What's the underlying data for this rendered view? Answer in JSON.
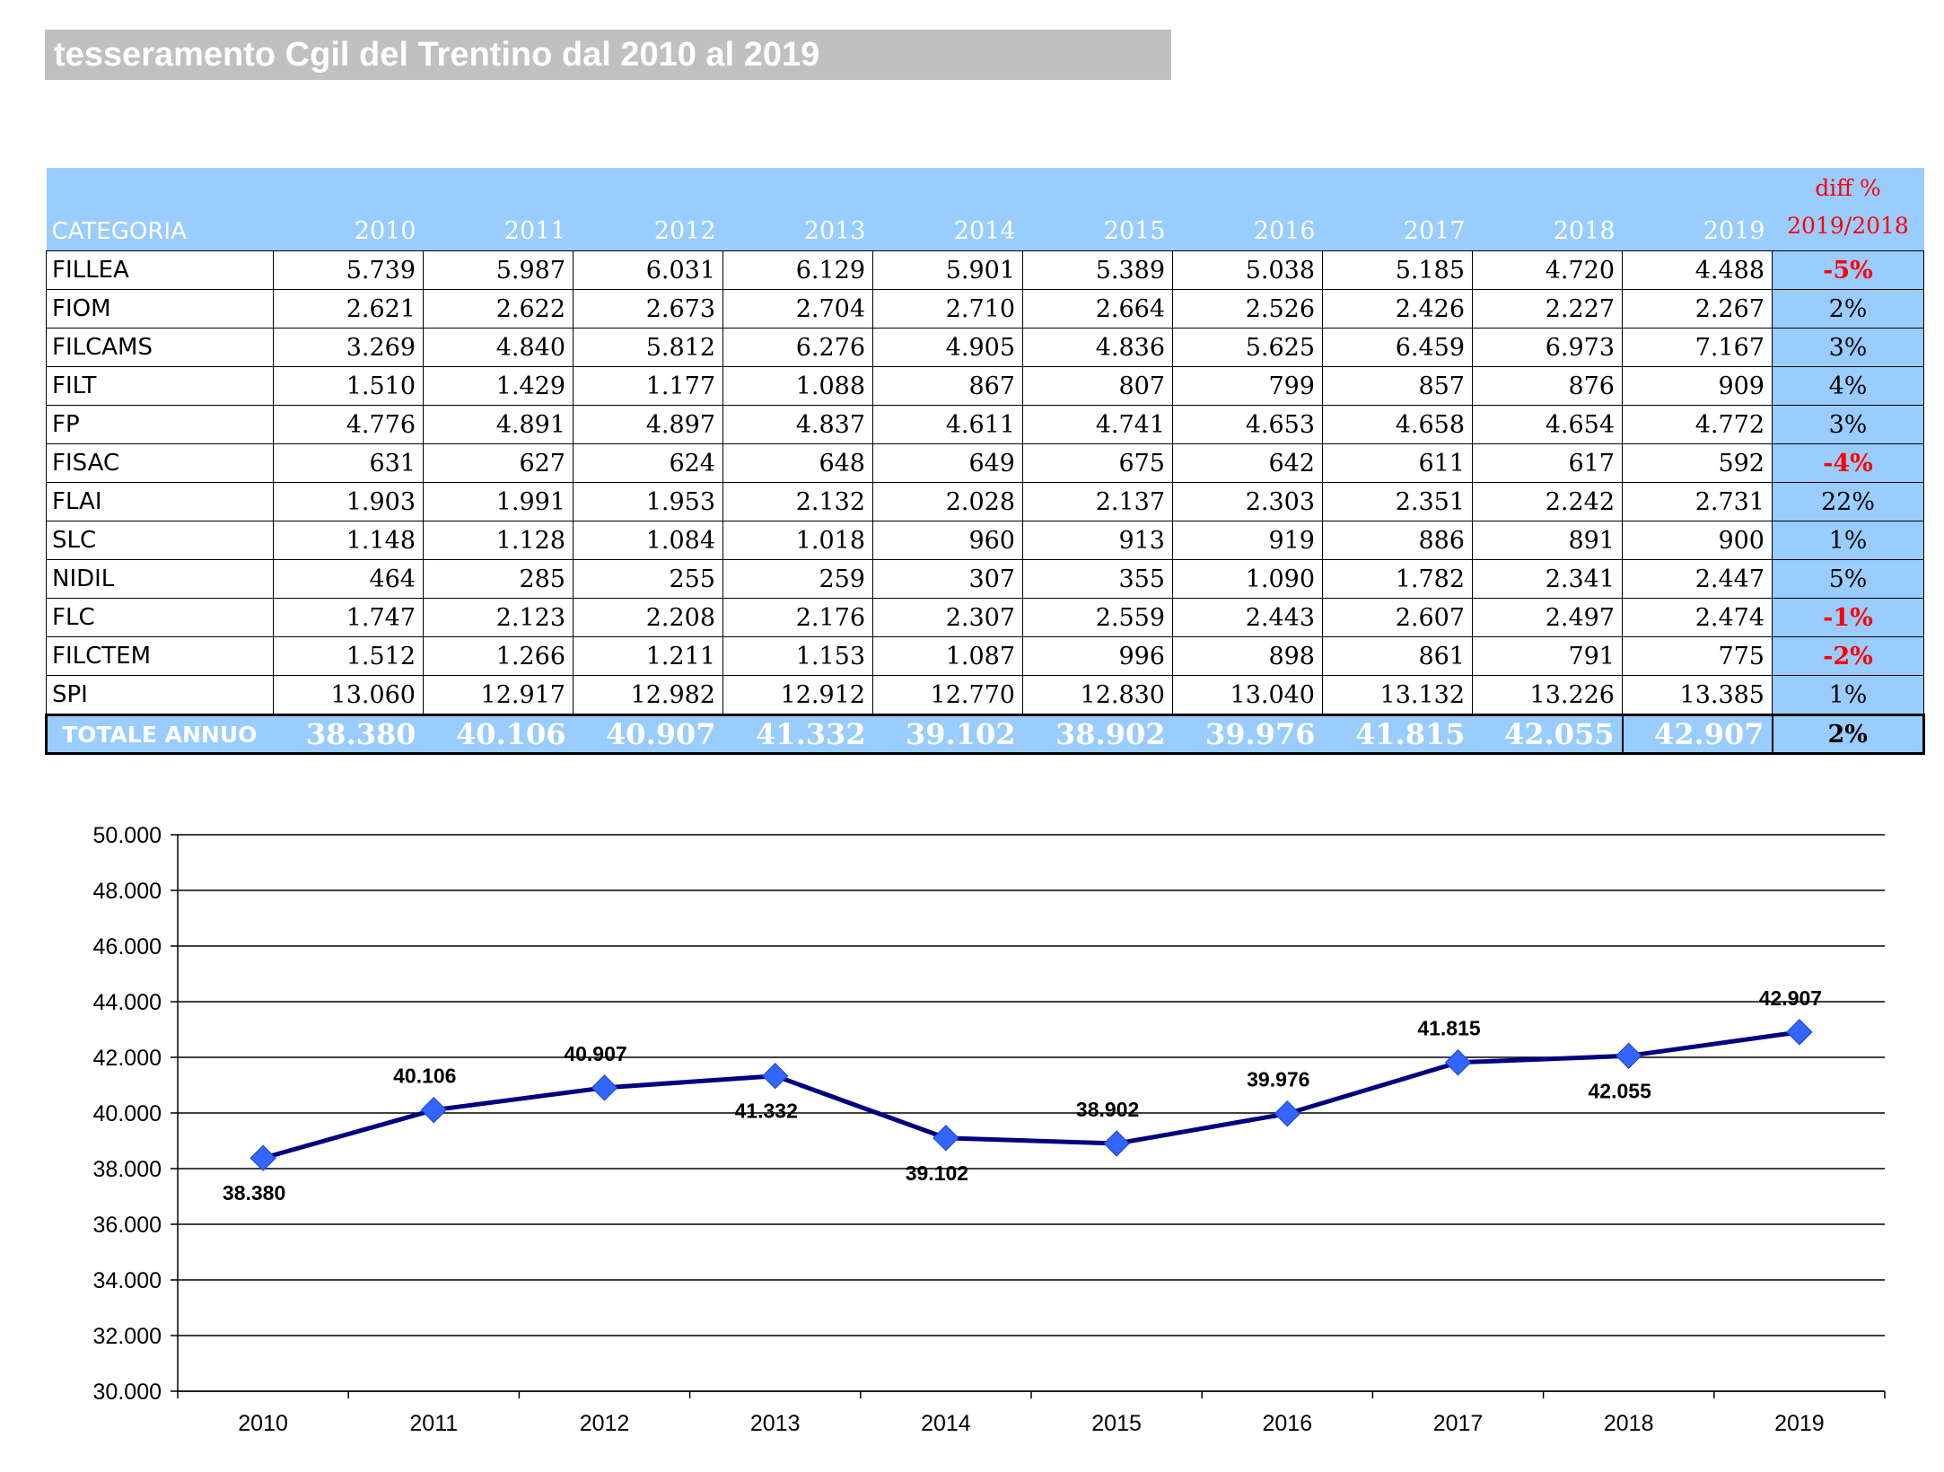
{
  "title": "tesseramento Cgil del Trentino dal 2010 al 2019",
  "table": {
    "category_header": "CATEGORIA",
    "years": [
      "2010",
      "2011",
      "2012",
      "2013",
      "2014",
      "2015",
      "2016",
      "2017",
      "2018",
      "2019"
    ],
    "diff_header_line1": "diff %",
    "diff_header_line2": "2019/2018",
    "rows": [
      {
        "name": "FILLEA",
        "values": [
          "5.739",
          "5.987",
          "6.031",
          "6.129",
          "5.901",
          "5.389",
          "5.038",
          "5.185",
          "4.720",
          "4.488"
        ],
        "diff": "-5%",
        "negative": true
      },
      {
        "name": "FIOM",
        "values": [
          "2.621",
          "2.622",
          "2.673",
          "2.704",
          "2.710",
          "2.664",
          "2.526",
          "2.426",
          "2.227",
          "2.267"
        ],
        "diff": "2%",
        "negative": false
      },
      {
        "name": "FILCAMS",
        "values": [
          "3.269",
          "4.840",
          "5.812",
          "6.276",
          "4.905",
          "4.836",
          "5.625",
          "6.459",
          "6.973",
          "7.167"
        ],
        "diff": "3%",
        "negative": false
      },
      {
        "name": "FILT",
        "values": [
          "1.510",
          "1.429",
          "1.177",
          "1.088",
          "867",
          "807",
          "799",
          "857",
          "876",
          "909"
        ],
        "diff": "4%",
        "negative": false
      },
      {
        "name": "FP",
        "values": [
          "4.776",
          "4.891",
          "4.897",
          "4.837",
          "4.611",
          "4.741",
          "4.653",
          "4.658",
          "4.654",
          "4.772"
        ],
        "diff": "3%",
        "negative": false
      },
      {
        "name": "FISAC",
        "values": [
          "631",
          "627",
          "624",
          "648",
          "649",
          "675",
          "642",
          "611",
          "617",
          "592"
        ],
        "diff": "-4%",
        "negative": true
      },
      {
        "name": "FLAI",
        "values": [
          "1.903",
          "1.991",
          "1.953",
          "2.132",
          "2.028",
          "2.137",
          "2.303",
          "2.351",
          "2.242",
          "2.731"
        ],
        "diff": "22%",
        "negative": false
      },
      {
        "name": "SLC",
        "values": [
          "1.148",
          "1.128",
          "1.084",
          "1.018",
          "960",
          "913",
          "919",
          "886",
          "891",
          "900"
        ],
        "diff": "1%",
        "negative": false
      },
      {
        "name": "NIDIL",
        "values": [
          "464",
          "285",
          "255",
          "259",
          "307",
          "355",
          "1.090",
          "1.782",
          "2.341",
          "2.447"
        ],
        "diff": "5%",
        "negative": false
      },
      {
        "name": "FLC",
        "values": [
          "1.747",
          "2.123",
          "2.208",
          "2.176",
          "2.307",
          "2.559",
          "2.443",
          "2.607",
          "2.497",
          "2.474"
        ],
        "diff": "-1%",
        "negative": true
      },
      {
        "name": "FILCTEM",
        "values": [
          "1.512",
          "1.266",
          "1.211",
          "1.153",
          "1.087",
          "996",
          "898",
          "861",
          "791",
          "775"
        ],
        "diff": "-2%",
        "negative": true
      },
      {
        "name": "SPI",
        "values": [
          "13.060",
          "12.917",
          "12.982",
          "12.912",
          "12.770",
          "12.830",
          "13.040",
          "13.132",
          "13.226",
          "13.385"
        ],
        "diff": "1%",
        "negative": false
      }
    ],
    "total": {
      "name": "TOTALE ANNUO",
      "values": [
        "38.380",
        "40.106",
        "40.907",
        "41.332",
        "39.102",
        "38.902",
        "39.976",
        "41.815",
        "42.055",
        "42.907"
      ],
      "diff": "2%"
    }
  },
  "chart_data": {
    "type": "line",
    "x": [
      "2010",
      "2011",
      "2012",
      "2013",
      "2014",
      "2015",
      "2016",
      "2017",
      "2018",
      "2019"
    ],
    "series": [
      {
        "values": [
          38380,
          40106,
          40907,
          41332,
          39102,
          38902,
          39976,
          41815,
          42055,
          42907
        ]
      }
    ],
    "data_labels": [
      "38.380",
      "40.106",
      "40.907",
      "41.332",
      "39.102",
      "38.902",
      "39.976",
      "41.815",
      "42.055",
      "42.907"
    ],
    "data_label_positions": [
      "below",
      "above",
      "above",
      "below",
      "below",
      "above",
      "above",
      "above",
      "below",
      "above"
    ],
    "yticks": [
      "30.000",
      "32.000",
      "34.000",
      "36.000",
      "38.000",
      "40.000",
      "42.000",
      "44.000",
      "46.000",
      "48.000",
      "50.000"
    ],
    "ylim": [
      30000,
      50000
    ],
    "grid": true,
    "line_color": "#000080",
    "marker_color": "#3366ff"
  }
}
